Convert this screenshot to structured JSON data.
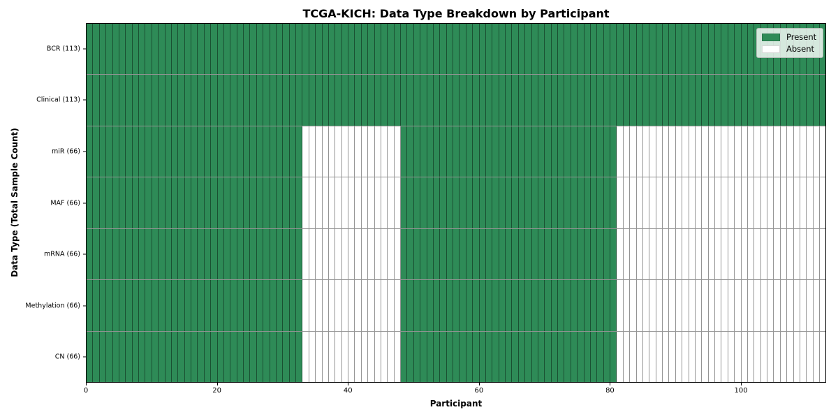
{
  "colors": {
    "present": "#2e8b57",
    "absent": "#ffffff",
    "grid": "rgba(0,0,0,0.42)",
    "spine": "#000000"
  },
  "chart_data": {
    "type": "heatmap",
    "title": "TCGA-KICH: Data Type Breakdown by Participant",
    "xlabel": "Participant",
    "ylabel": "Data Type (Total Sample Count)",
    "x_range": [
      0,
      113
    ],
    "n_participants": 113,
    "x_ticks": [
      0,
      20,
      40,
      60,
      80,
      100
    ],
    "grid": true,
    "legend_position": "upper right",
    "legend": [
      {
        "label": "Present",
        "color": "#2e8b57"
      },
      {
        "label": "Absent",
        "color": "#ffffff"
      }
    ],
    "rows": [
      {
        "label": "BCR (113)",
        "name": "BCR",
        "present_count": 113,
        "present_ranges": [
          [
            0,
            113
          ]
        ]
      },
      {
        "label": "Clinical (113)",
        "name": "Clinical",
        "present_count": 113,
        "present_ranges": [
          [
            0,
            113
          ]
        ]
      },
      {
        "label": "miR (66)",
        "name": "miR",
        "present_count": 66,
        "present_ranges": [
          [
            0,
            33
          ],
          [
            48,
            81
          ]
        ]
      },
      {
        "label": "MAF (66)",
        "name": "MAF",
        "present_count": 66,
        "present_ranges": [
          [
            0,
            33
          ],
          [
            48,
            81
          ]
        ]
      },
      {
        "label": "mRNA (66)",
        "name": "mRNA",
        "present_count": 66,
        "present_ranges": [
          [
            0,
            33
          ],
          [
            48,
            81
          ]
        ]
      },
      {
        "label": "Methylation (66)",
        "name": "Methylation",
        "present_count": 66,
        "present_ranges": [
          [
            0,
            33
          ],
          [
            48,
            81
          ]
        ]
      },
      {
        "label": "CN (66)",
        "name": "CN",
        "present_count": 66,
        "present_ranges": [
          [
            0,
            33
          ],
          [
            48,
            81
          ]
        ]
      }
    ]
  }
}
